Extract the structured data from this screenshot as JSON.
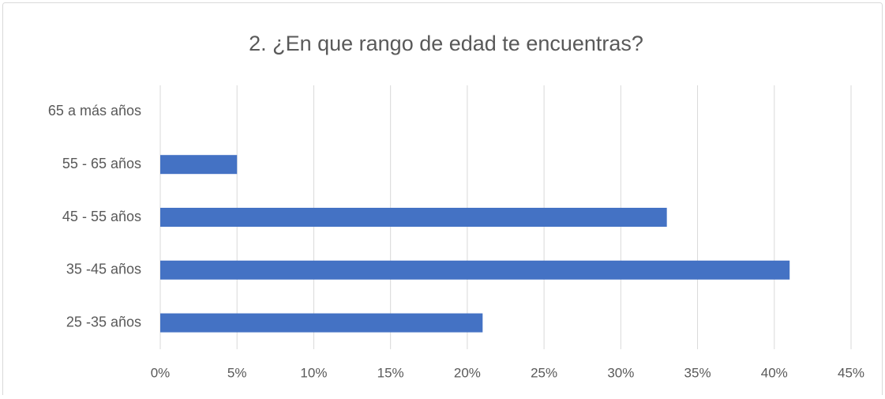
{
  "chart_data": {
    "type": "bar",
    "orientation": "horizontal",
    "title": "2. ¿En que rango de edad te encuentras?",
    "categories": [
      "65 a más años",
      "55 - 65 años",
      "45 - 55 años",
      "35 -45 años",
      "25 -35 años"
    ],
    "values": [
      0,
      5,
      33,
      41,
      21
    ],
    "color": "#4472c4",
    "xlim": [
      0,
      45
    ],
    "xticks": [
      {
        "value": 0,
        "label": "0%"
      },
      {
        "value": 5,
        "label": "5%"
      },
      {
        "value": 10,
        "label": "10%"
      },
      {
        "value": 15,
        "label": "15%"
      },
      {
        "value": 20,
        "label": "20%"
      },
      {
        "value": 25,
        "label": "25%"
      },
      {
        "value": 30,
        "label": "30%"
      },
      {
        "value": 35,
        "label": "35%"
      },
      {
        "value": 40,
        "label": "40%"
      },
      {
        "value": 45,
        "label": "45%"
      }
    ],
    "grid": true
  }
}
